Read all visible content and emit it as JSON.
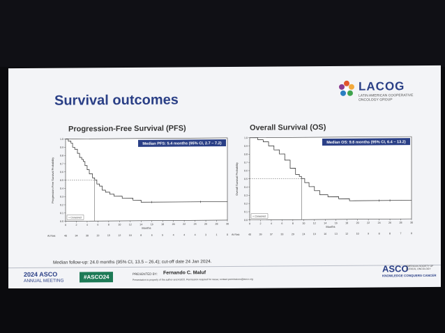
{
  "slide": {
    "title": "Survival outcomes",
    "logo": {
      "name": "LACOG",
      "subtitle": "LATIN AMERICAN COOPERATIVE ONCOLOGY GROUP"
    },
    "followup": "Median follow-up: 24.0 months (95% CI, 13.5 – 26.4); cut-off date 24 Jan 2024.",
    "meeting": {
      "year": "2024",
      "name": "ASCO",
      "sub": "ANNUAL MEETING"
    },
    "hashtag": "#ASCO24",
    "presented_by_label": "PRESENTED BY:",
    "presenter": "Fernando C. Maluf",
    "property_note": "Presentation is property of the author and ASCO. Permission required for reuse; contact permissions@asco.org",
    "asco": {
      "name": "ASCO",
      "sub": "AMERICAN SOCIETY OF CLINICAL ONCOLOGY",
      "tagline": "KNOWLEDGE CONQUERS CANCER"
    }
  },
  "chart_data": [
    {
      "type": "line",
      "title": "Progression-Free Survival (PFS)",
      "median_label": "Median PFS: 5.4 months (95% CI, 2.7 – 7.2)",
      "xlabel": "Months",
      "ylabel": "Progression-Free Survival Probability",
      "xlim": [
        0,
        30
      ],
      "ylim": [
        0,
        1.0
      ],
      "x_ticks": [
        "0",
        "2",
        "4",
        "6",
        "8",
        "10",
        "12",
        "14",
        "16",
        "18",
        "20",
        "22",
        "24",
        "26",
        "28",
        "30"
      ],
      "y_ticks": [
        "0.0",
        "0.1",
        "0.2",
        "0.3",
        "0.4",
        "0.5",
        "0.6",
        "0.7",
        "0.8",
        "0.9",
        "1.0"
      ],
      "legend": "+ Censored",
      "at_risk_label": "At Risk",
      "at_risk": [
        "40",
        "34",
        "30",
        "19",
        "15",
        "12",
        "10",
        "8",
        "6",
        "5",
        "4",
        "4",
        "4",
        "3",
        "1",
        "0"
      ],
      "median_x": 5.4,
      "steps": [
        [
          0,
          1.0
        ],
        [
          0.5,
          0.975
        ],
        [
          1,
          0.95
        ],
        [
          1.3,
          0.9
        ],
        [
          1.7,
          0.875
        ],
        [
          2.2,
          0.825
        ],
        [
          2.6,
          0.775
        ],
        [
          3,
          0.75
        ],
        [
          3.3,
          0.725
        ],
        [
          3.6,
          0.675
        ],
        [
          4.0,
          0.625
        ],
        [
          4.4,
          0.575
        ],
        [
          5.0,
          0.525
        ],
        [
          5.4,
          0.5
        ],
        [
          5.8,
          0.45
        ],
        [
          6.3,
          0.425
        ],
        [
          6.8,
          0.375
        ],
        [
          7.4,
          0.35
        ],
        [
          8.2,
          0.325
        ],
        [
          9.0,
          0.3
        ],
        [
          10.5,
          0.275
        ],
        [
          12.5,
          0.25
        ],
        [
          14.0,
          0.225
        ],
        [
          30,
          0.225
        ]
      ],
      "censor_x": [
        16,
        25
      ]
    },
    {
      "type": "line",
      "title": "Overall Survival (OS)",
      "median_label": "Median OS: 9.6 months (95% CI, 6.4 – 13.2)",
      "xlabel": "Months",
      "ylabel": "Overall Survival Probability",
      "xlim": [
        0,
        30
      ],
      "ylim": [
        0,
        1.0
      ],
      "x_ticks": [
        "0",
        "2",
        "4",
        "6",
        "8",
        "10",
        "12",
        "14",
        "16",
        "18",
        "20",
        "22",
        "24",
        "26",
        "28",
        "30"
      ],
      "y_ticks": [
        "0.0",
        "0.1",
        "0.2",
        "0.3",
        "0.4",
        "0.5",
        "0.6",
        "0.7",
        "0.8",
        "0.9",
        "1.0"
      ],
      "legend": "+ Censored",
      "at_risk_label": "At Risk",
      "at_risk": [
        "40",
        "39",
        "37",
        "33",
        "29",
        "24",
        "19",
        "16",
        "13",
        "12",
        "10",
        "9",
        "8",
        "8",
        "7",
        "0"
      ],
      "median_x": 9.6,
      "steps": [
        [
          0,
          1.0
        ],
        [
          1.5,
          0.975
        ],
        [
          2.5,
          0.95
        ],
        [
          3.5,
          0.9
        ],
        [
          4.5,
          0.85
        ],
        [
          5.5,
          0.8
        ],
        [
          6.5,
          0.725
        ],
        [
          7.5,
          0.625
        ],
        [
          8.5,
          0.55
        ],
        [
          9.2,
          0.525
        ],
        [
          9.6,
          0.5
        ],
        [
          10.2,
          0.45
        ],
        [
          11,
          0.4
        ],
        [
          12,
          0.35
        ],
        [
          13,
          0.3
        ],
        [
          14.5,
          0.275
        ],
        [
          16.5,
          0.25
        ],
        [
          18.5,
          0.225
        ],
        [
          30,
          0.225
        ]
      ],
      "censor_x": [
        24,
        26
      ]
    }
  ]
}
